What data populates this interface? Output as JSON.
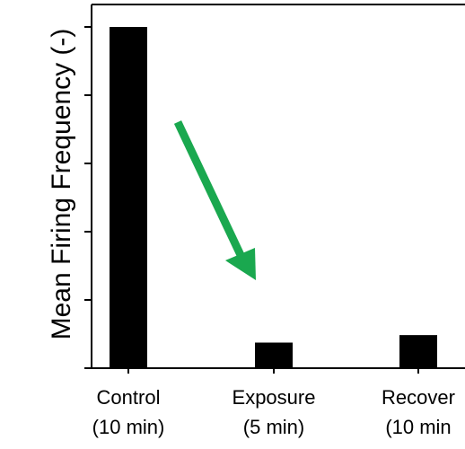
{
  "chart_data": {
    "type": "bar",
    "categories": [
      {
        "line1": "Control",
        "line2": "(10 min)"
      },
      {
        "line1": "Exposure",
        "line2": "(5 min)"
      },
      {
        "line1": "Recover",
        "line2": "(10 min"
      }
    ],
    "values": [
      1.0,
      0.075,
      0.097
    ],
    "ylabel": "Mean Firing Frequency (-)",
    "xlabel": "",
    "ylim": [
      0,
      1.05
    ],
    "y_ticks": [
      0,
      0.2,
      0.4,
      0.6,
      0.8,
      1.0
    ],
    "y_tick_labels_shown": false,
    "grid": false,
    "legend": "none",
    "bar_color": "#000000",
    "annotation": {
      "type": "arrow",
      "color": "#1aa84f",
      "direction": "down-right",
      "meaning": "decrease"
    }
  }
}
